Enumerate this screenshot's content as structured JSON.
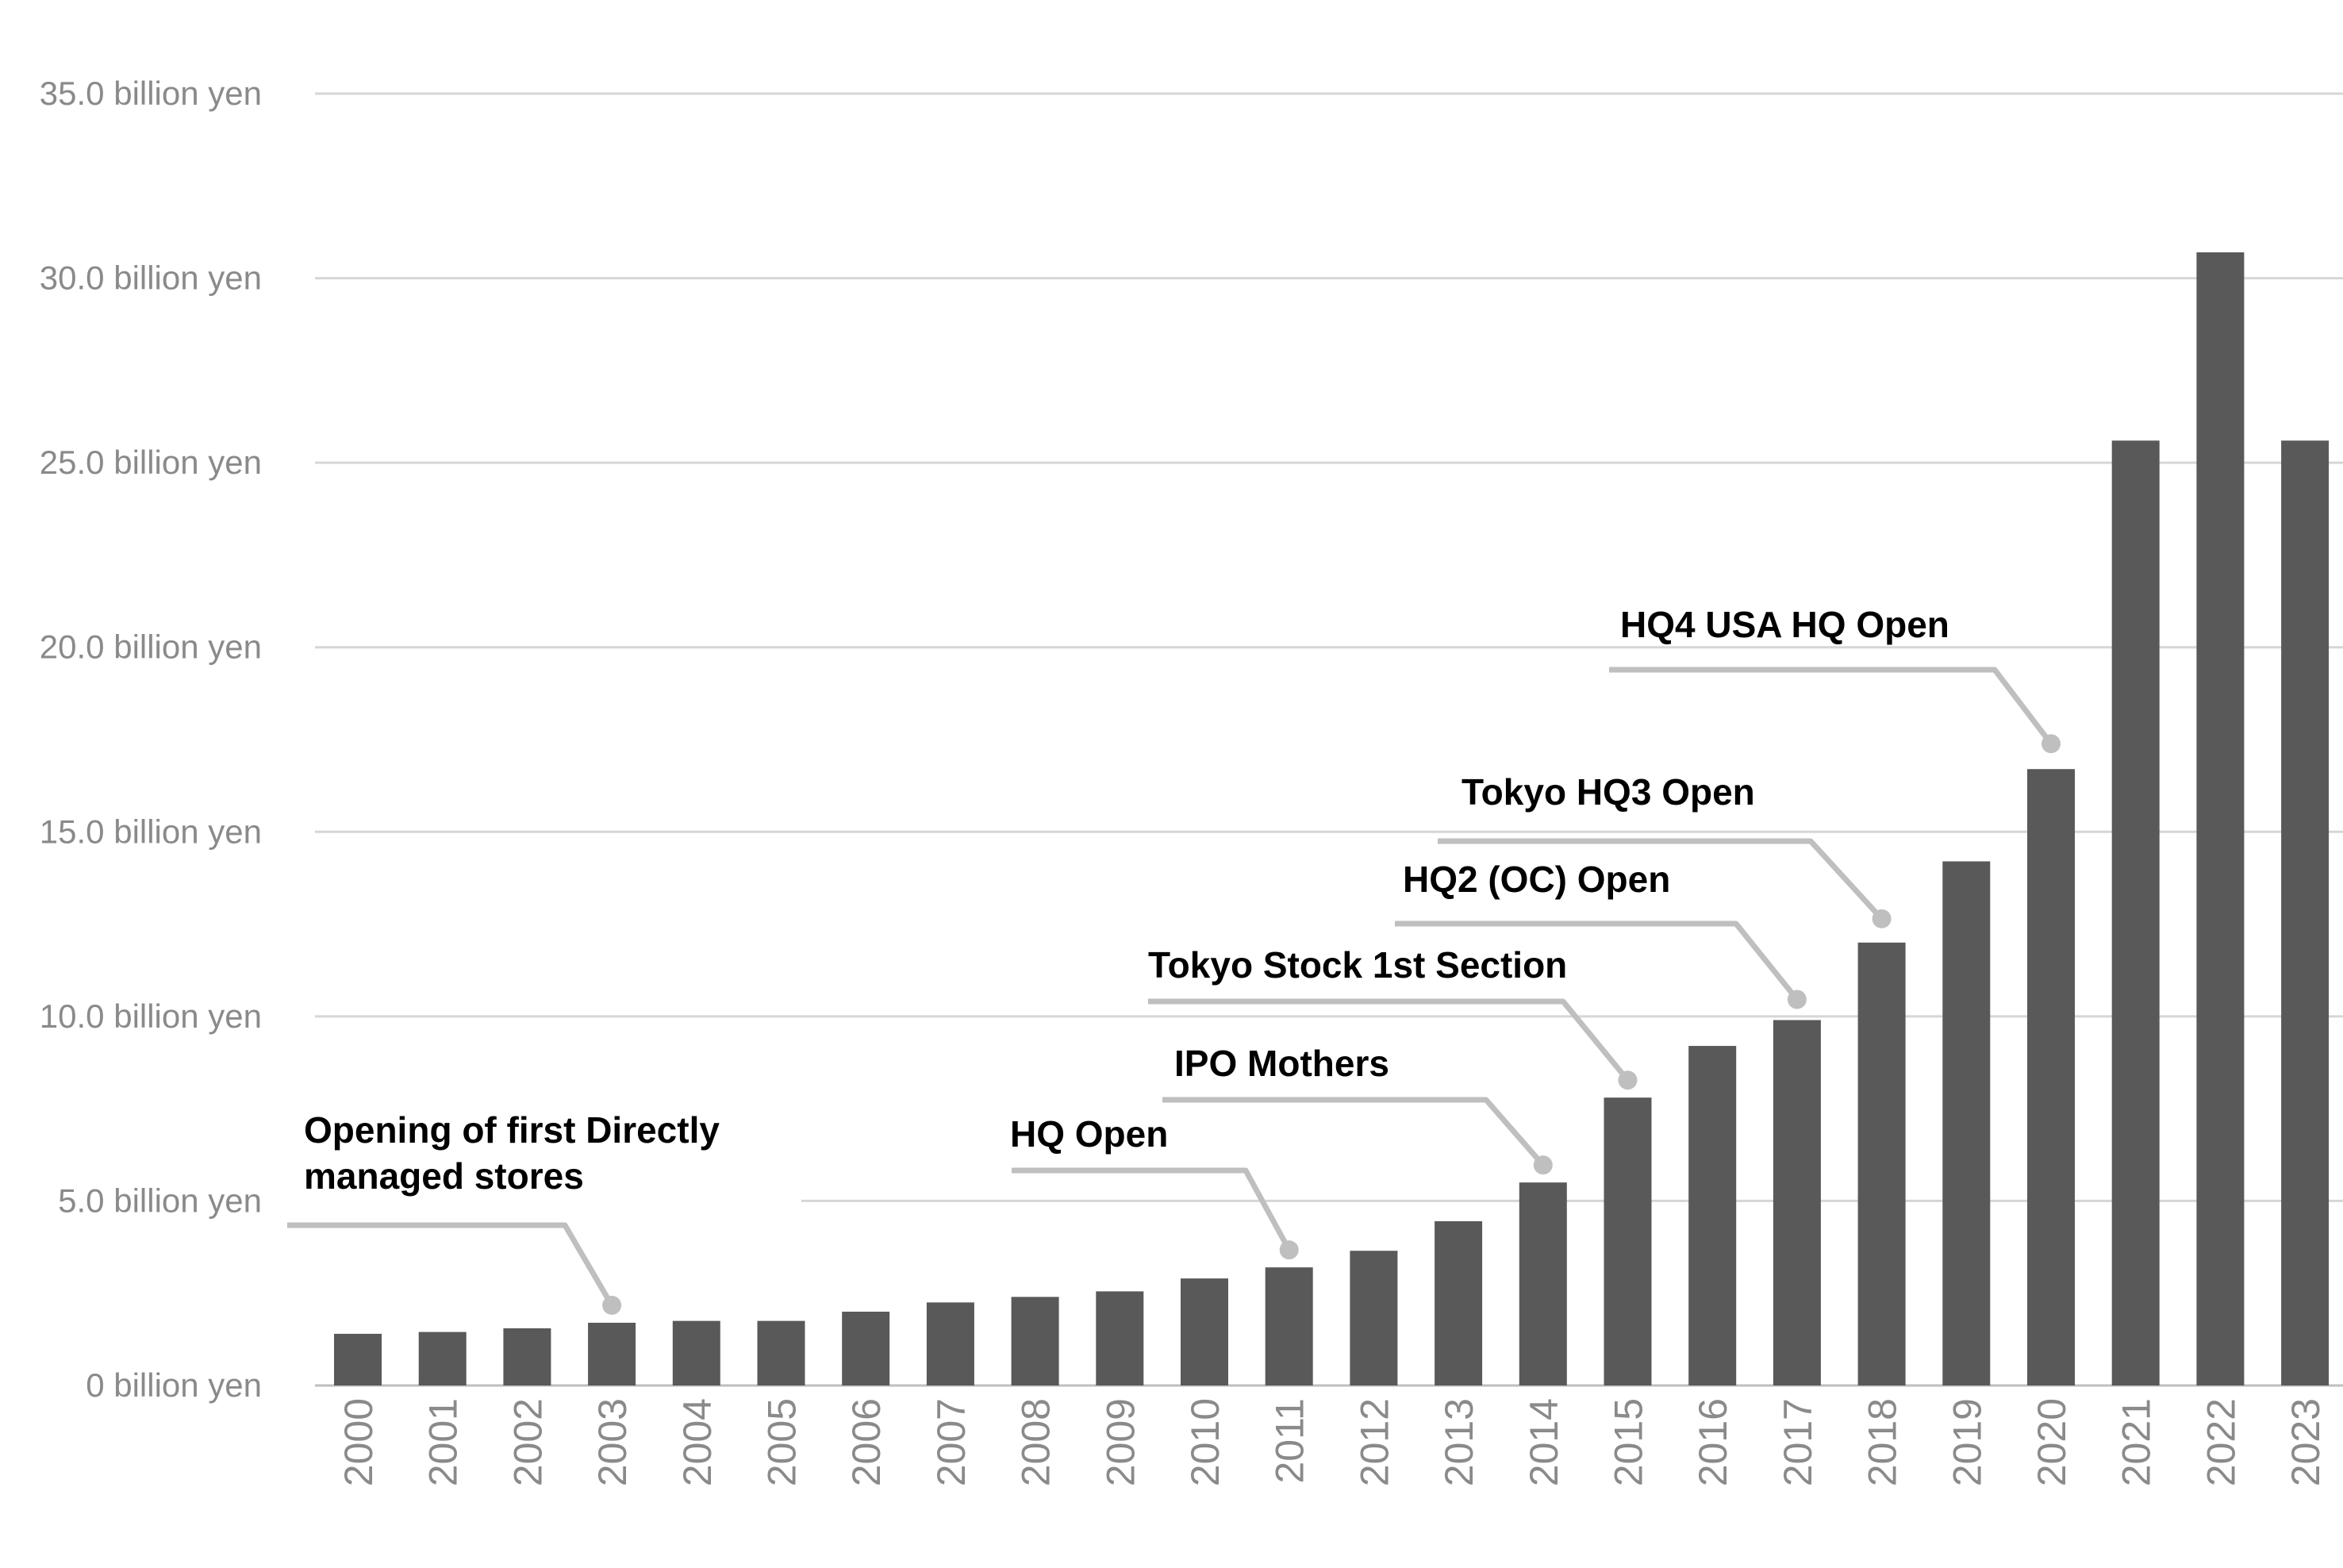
{
  "chart_data": {
    "type": "bar",
    "categories": [
      "2000",
      "2001",
      "2002",
      "2003",
      "2004",
      "2005",
      "2006",
      "2007",
      "2008",
      "2009",
      "2010",
      "2011",
      "2012",
      "2013",
      "2014",
      "2015",
      "2016",
      "2017",
      "2018",
      "2019",
      "2020",
      "2021",
      "2022",
      "2023"
    ],
    "values": [
      1.4,
      1.45,
      1.55,
      1.7,
      1.75,
      1.75,
      2.0,
      2.25,
      2.4,
      2.55,
      2.9,
      3.2,
      3.65,
      4.45,
      5.5,
      7.8,
      9.2,
      9.9,
      12.0,
      14.2,
      16.7,
      25.6,
      30.7,
      25.6
    ],
    "ylim": [
      0,
      35
    ],
    "yticks": [
      {
        "value": 0,
        "label": "0 billion yen"
      },
      {
        "value": 5,
        "label": "5.0 billion yen"
      },
      {
        "value": 10,
        "label": "10.0 billion yen"
      },
      {
        "value": 15,
        "label": "15.0 billion yen"
      },
      {
        "value": 20,
        "label": "20.0 billion yen"
      },
      {
        "value": 25,
        "label": "25.0 billion yen"
      },
      {
        "value": 30,
        "label": "30.0 billion yen"
      },
      {
        "value": 35,
        "label": "35.0 billion yen"
      }
    ],
    "grid": true,
    "bar_color": "#595959",
    "annotations": [
      {
        "category": "2003",
        "lines": [
          "Opening of first Directly",
          "managed stores"
        ]
      },
      {
        "category": "2011",
        "lines": [
          "HQ Open"
        ]
      },
      {
        "category": "2014",
        "lines": [
          "IPO Mothers"
        ]
      },
      {
        "category": "2015",
        "lines": [
          "Tokyo Stock 1st Section"
        ]
      },
      {
        "category": "2017",
        "lines": [
          "HQ2 (OC) Open"
        ]
      },
      {
        "category": "2018",
        "lines": [
          "Tokyo HQ3 Open"
        ]
      },
      {
        "category": "2020",
        "lines": [
          "HQ4 USA HQ Open"
        ]
      }
    ]
  }
}
